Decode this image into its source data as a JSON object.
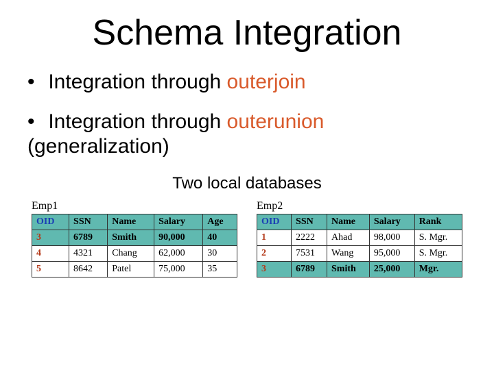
{
  "title": "Schema Integration",
  "bullets": [
    {
      "prefix": "Integration through ",
      "hl": "outerjoin",
      "suffix": ""
    },
    {
      "prefix": "Integration through ",
      "hl": "outerunion",
      "suffix": " (generalization)"
    }
  ],
  "subtitle": "Two local databases",
  "tables": [
    {
      "label": "Emp1",
      "columns": [
        "OID",
        "SSN",
        "Name",
        "Salary",
        "Age"
      ],
      "rows": [
        {
          "cells": [
            "3",
            "6789",
            "Smith",
            "90,000",
            "40"
          ],
          "highlight": true
        },
        {
          "cells": [
            "4",
            "4321",
            "Chang",
            "62,000",
            "30"
          ],
          "highlight": false
        },
        {
          "cells": [
            "5",
            "8642",
            "Patel",
            "75,000",
            "35"
          ],
          "highlight": false
        }
      ]
    },
    {
      "label": "Emp2",
      "columns": [
        "OID",
        "SSN",
        "Name",
        "Salary",
        "Rank"
      ],
      "rows": [
        {
          "cells": [
            "1",
            "2222",
            "Ahad",
            "98,000",
            "S. Mgr."
          ],
          "highlight": false
        },
        {
          "cells": [
            "2",
            "7531",
            "Wang",
            "95,000",
            "S. Mgr."
          ],
          "highlight": false
        },
        {
          "cells": [
            "3",
            "6789",
            "Smith",
            "25,000",
            "Mgr."
          ],
          "highlight": true
        }
      ]
    }
  ],
  "colors": {
    "highlight_bg": "#60b9b0",
    "highlight_text": "#d95a2b",
    "oid_header": "#1a3fb5",
    "oid_cell": "#b43a1a"
  }
}
